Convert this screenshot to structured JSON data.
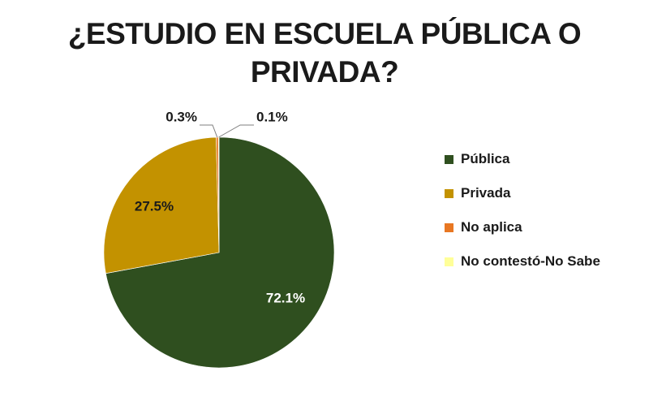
{
  "chart_data": {
    "type": "pie",
    "title_line1": "¿ESTUDIO EN ESCUELA PÚBLICA O",
    "title_line2": "PRIVADA?",
    "slices": [
      {
        "name": "Pública",
        "value": 72.1,
        "label": "72.1%",
        "color": "#2f4f1f"
      },
      {
        "name": "Privada",
        "value": 27.5,
        "label": "27.5%",
        "color": "#c39200"
      },
      {
        "name": "No aplica",
        "value": 0.3,
        "label": "0.3%",
        "color": "#e87722"
      },
      {
        "name": "No contestó-No Sabe",
        "value": 0.1,
        "label": "0.1%",
        "color": "#ffff99"
      }
    ],
    "legend_position": "right"
  }
}
